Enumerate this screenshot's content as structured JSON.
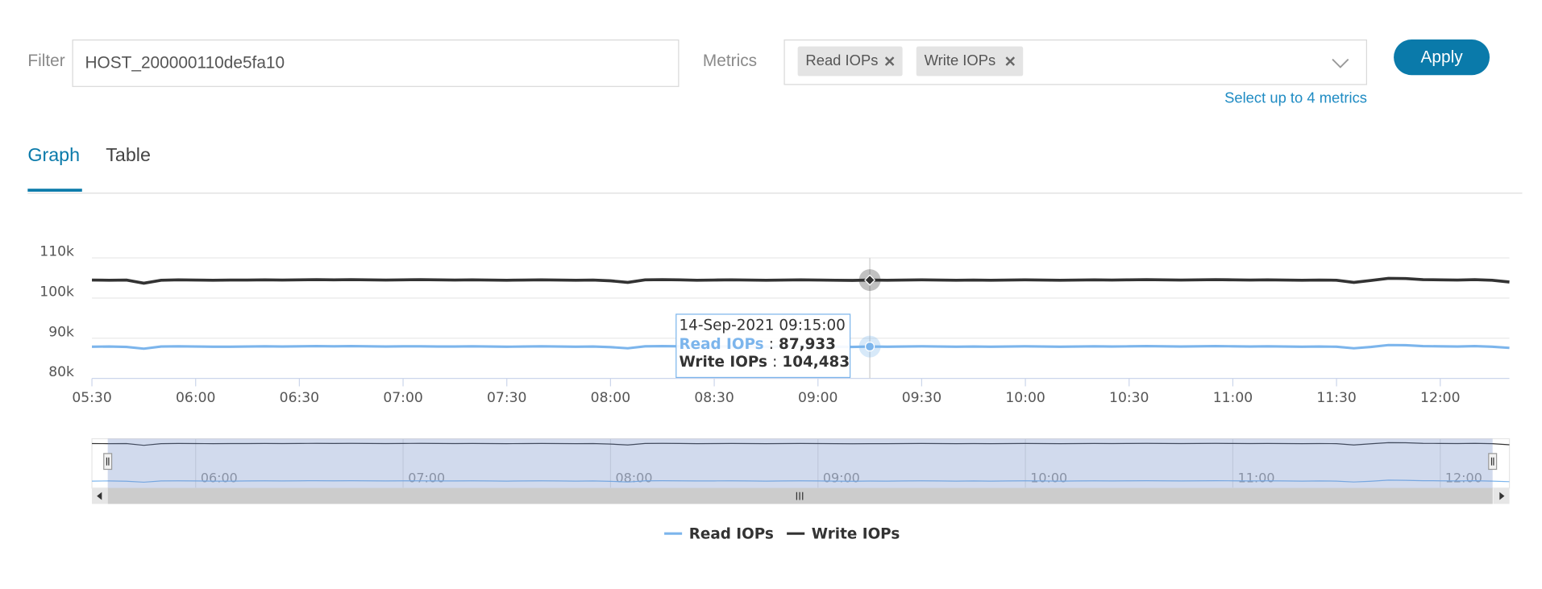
{
  "filter": {
    "label": "Filter",
    "value": "HOST_200000110de5fa10"
  },
  "metrics": {
    "label": "Metrics",
    "selected": [
      "Read IOPs",
      "Write IOPs"
    ],
    "hint": "Select up to 4 metrics"
  },
  "apply": "Apply",
  "tabs": [
    "Graph",
    "Table"
  ],
  "chart_data": {
    "type": "line",
    "x": [
      "05:30",
      "05:35",
      "05:40",
      "05:45",
      "05:50",
      "05:55",
      "06:00",
      "06:05",
      "06:10",
      "06:15",
      "06:20",
      "06:25",
      "06:30",
      "06:35",
      "06:40",
      "06:45",
      "06:50",
      "06:55",
      "07:00",
      "07:05",
      "07:10",
      "07:15",
      "07:20",
      "07:25",
      "07:30",
      "07:35",
      "07:40",
      "07:45",
      "07:50",
      "07:55",
      "08:00",
      "08:05",
      "08:10",
      "08:15",
      "08:20",
      "08:25",
      "08:30",
      "08:35",
      "08:40",
      "08:45",
      "08:50",
      "08:55",
      "09:00",
      "09:05",
      "09:10",
      "09:15",
      "09:20",
      "09:25",
      "09:30",
      "09:35",
      "09:40",
      "09:45",
      "09:50",
      "09:55",
      "10:00",
      "10:05",
      "10:10",
      "10:15",
      "10:20",
      "10:25",
      "10:30",
      "10:35",
      "10:40",
      "10:45",
      "10:50",
      "10:55",
      "11:00",
      "11:05",
      "11:10",
      "11:15",
      "11:20",
      "11:25",
      "11:30",
      "11:35",
      "11:40",
      "11:45",
      "11:50",
      "11:55",
      "12:00",
      "12:05",
      "12:10",
      "12:15",
      "12:20"
    ],
    "series": [
      {
        "name": "Read IOPs",
        "color": "#7cb5ec",
        "values": [
          87900,
          87950,
          87850,
          87400,
          87950,
          88000,
          87950,
          87900,
          87900,
          87950,
          88000,
          87950,
          88000,
          88050,
          88000,
          88050,
          88000,
          87950,
          88000,
          88000,
          87950,
          87950,
          88000,
          87950,
          87900,
          87950,
          88000,
          87950,
          87900,
          87950,
          87800,
          87500,
          88000,
          88050,
          88000,
          87950,
          87950,
          88000,
          87950,
          87900,
          87950,
          88000,
          87950,
          87900,
          87850,
          87933,
          87900,
          87950,
          88000,
          87950,
          87900,
          87950,
          87900,
          87950,
          88000,
          87950,
          87900,
          87950,
          88000,
          87950,
          88000,
          88050,
          88000,
          87950,
          88000,
          88050,
          88000,
          87950,
          88000,
          87950,
          87900,
          87950,
          87900,
          87500,
          87850,
          88300,
          88250,
          88050,
          88000,
          87950,
          88050,
          87900,
          87600
        ]
      },
      {
        "name": "Write IOPs",
        "color": "#333333",
        "values": [
          104500,
          104450,
          104500,
          103700,
          104450,
          104550,
          104500,
          104450,
          104500,
          104500,
          104550,
          104500,
          104550,
          104600,
          104550,
          104600,
          104550,
          104500,
          104550,
          104600,
          104550,
          104500,
          104550,
          104500,
          104450,
          104500,
          104550,
          104500,
          104450,
          104500,
          104300,
          103900,
          104550,
          104600,
          104550,
          104450,
          104500,
          104550,
          104500,
          104450,
          104500,
          104550,
          104500,
          104450,
          104400,
          104483,
          104450,
          104500,
          104550,
          104500,
          104450,
          104500,
          104450,
          104500,
          104550,
          104500,
          104450,
          104500,
          104550,
          104500,
          104550,
          104600,
          104550,
          104500,
          104550,
          104600,
          104550,
          104500,
          104550,
          104500,
          104450,
          104500,
          104450,
          103900,
          104400,
          104900,
          104850,
          104600,
          104550,
          104500,
          104600,
          104450,
          104000
        ]
      }
    ],
    "xlim": [
      "05:30",
      "12:20"
    ],
    "xticks": [
      "05:30",
      "06:00",
      "06:30",
      "07:00",
      "07:30",
      "08:00",
      "08:30",
      "09:00",
      "09:30",
      "10:00",
      "10:30",
      "11:00",
      "11:30",
      "12:00"
    ],
    "ylim": [
      80000,
      110000
    ],
    "yticks": [
      {
        "value": 80000,
        "label": "80k"
      },
      {
        "value": 90000,
        "label": "90k"
      },
      {
        "value": 100000,
        "label": "100k"
      },
      {
        "value": 110000,
        "label": "110k"
      }
    ],
    "grid": true,
    "legend": "bottom",
    "navigator_xticks": [
      "06:00",
      "07:00",
      "08:00",
      "09:00",
      "10:00",
      "11:00",
      "12:00"
    ],
    "tooltip": {
      "x": "14-Sep-2021 09:15:00",
      "separator": ":",
      "values": [
        87933,
        104483
      ],
      "value_labels": [
        "87,933",
        "104,483"
      ]
    }
  }
}
